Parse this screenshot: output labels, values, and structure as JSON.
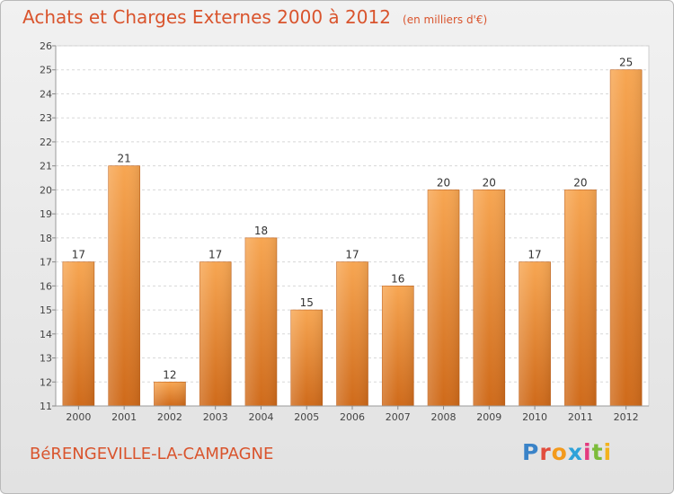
{
  "header": {
    "title": "Achats et Charges Externes 2000 à 2012",
    "unit": "(en milliers d'€)"
  },
  "footer": {
    "commune": "BéRENGEVILLE-LA-CAMPAGNE",
    "logo_letters": [
      "P",
      "r",
      "o",
      "x",
      "i",
      "t",
      "i"
    ]
  },
  "chart_data": {
    "type": "bar",
    "categories": [
      "2000",
      "2001",
      "2002",
      "2003",
      "2004",
      "2005",
      "2006",
      "2007",
      "2008",
      "2009",
      "2010",
      "2011",
      "2012"
    ],
    "values": [
      17,
      21,
      12,
      17,
      18,
      15,
      17,
      16,
      20,
      20,
      17,
      20,
      25
    ],
    "ylim": [
      11,
      26
    ],
    "yticks": [
      11,
      12,
      13,
      14,
      15,
      16,
      17,
      18,
      19,
      20,
      21,
      22,
      23,
      24,
      25,
      26
    ],
    "grid": true,
    "bar_color": "#f08a2e"
  }
}
